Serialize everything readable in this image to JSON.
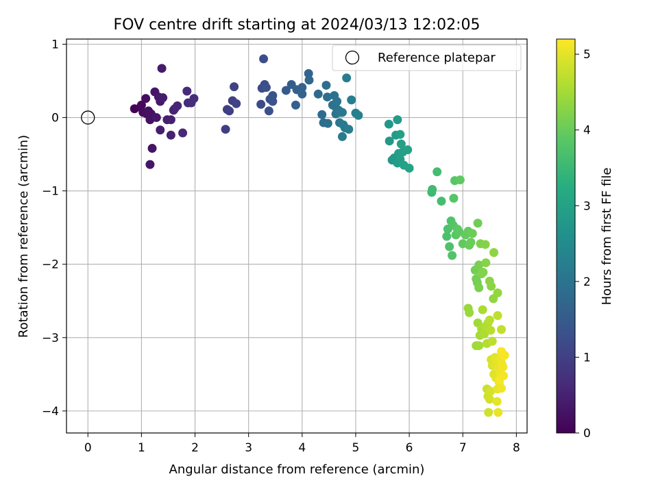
{
  "chart_data": {
    "type": "scatter",
    "title": "FOV centre drift starting at 2024/03/13 12:02:05",
    "xlabel": "Angular distance from reference (arcmin)",
    "ylabel": "Rotation from reference (arcmin)",
    "xlim": [
      -0.4,
      8.2
    ],
    "ylim": [
      -4.3,
      1.07
    ],
    "x_ticks": [
      0,
      1,
      2,
      3,
      4,
      5,
      6,
      7,
      8
    ],
    "x_tick_labels": [
      "0",
      "1",
      "2",
      "3",
      "4",
      "5",
      "6",
      "7",
      "8"
    ],
    "y_ticks": [
      1,
      0,
      -1,
      -2,
      -3,
      -4
    ],
    "y_tick_labels": [
      "1",
      "0",
      "−1",
      "−2",
      "−3",
      "−4"
    ],
    "grid": true,
    "legend": {
      "position": "upper-right",
      "entries": [
        "Reference platepar"
      ]
    },
    "reference_point": {
      "x": 0,
      "y": 0
    },
    "colorbar": {
      "label": "Hours from first FF file",
      "range": [
        0,
        5.2
      ],
      "ticks": [
        0,
        1,
        2,
        3,
        4,
        5
      ],
      "tick_labels": [
        "0",
        "1",
        "2",
        "3",
        "4",
        "5"
      ],
      "colormap": "viridis"
    },
    "points": [
      {
        "x": 0.87,
        "y": 0.12,
        "t": 0.05
      },
      {
        "x": 0.98,
        "y": 0.14,
        "t": 0.1
      },
      {
        "x": 1.0,
        "y": 0.17,
        "t": 0.12
      },
      {
        "x": 1.03,
        "y": 0.07,
        "t": 0.15
      },
      {
        "x": 1.08,
        "y": 0.26,
        "t": 0.18
      },
      {
        "x": 1.1,
        "y": 0.05,
        "t": 0.2
      },
      {
        "x": 1.13,
        "y": 0.09,
        "t": 0.22
      },
      {
        "x": 1.16,
        "y": -0.03,
        "t": 0.24
      },
      {
        "x": 1.18,
        "y": 0.05,
        "t": 0.26
      },
      {
        "x": 1.2,
        "y": -0.42,
        "t": 0.28
      },
      {
        "x": 1.16,
        "y": -0.64,
        "t": 0.3
      },
      {
        "x": 1.25,
        "y": 0.35,
        "t": 0.32
      },
      {
        "x": 1.28,
        "y": 0.0,
        "t": 0.34
      },
      {
        "x": 1.32,
        "y": 0.28,
        "t": 0.36
      },
      {
        "x": 1.35,
        "y": 0.22,
        "t": 0.38
      },
      {
        "x": 1.38,
        "y": 0.67,
        "t": 0.4
      },
      {
        "x": 1.4,
        "y": 0.27,
        "t": 0.42
      },
      {
        "x": 1.35,
        "y": -0.17,
        "t": 0.44
      },
      {
        "x": 1.48,
        "y": -0.03,
        "t": 0.46
      },
      {
        "x": 1.55,
        "y": -0.03,
        "t": 0.48
      },
      {
        "x": 1.55,
        "y": -0.24,
        "t": 0.5
      },
      {
        "x": 1.6,
        "y": 0.1,
        "t": 0.52
      },
      {
        "x": 1.62,
        "y": 0.12,
        "t": 0.54
      },
      {
        "x": 1.67,
        "y": 0.16,
        "t": 0.56
      },
      {
        "x": 1.77,
        "y": -0.21,
        "t": 0.6
      },
      {
        "x": 1.85,
        "y": 0.36,
        "t": 0.62
      },
      {
        "x": 1.87,
        "y": 0.2,
        "t": 0.64
      },
      {
        "x": 1.93,
        "y": 0.2,
        "t": 0.66
      },
      {
        "x": 1.98,
        "y": 0.26,
        "t": 0.68
      },
      {
        "x": 2.57,
        "y": -0.16,
        "t": 0.95
      },
      {
        "x": 2.6,
        "y": 0.11,
        "t": 0.97
      },
      {
        "x": 2.64,
        "y": 0.09,
        "t": 0.99
      },
      {
        "x": 2.7,
        "y": 0.23,
        "t": 1.01
      },
      {
        "x": 2.73,
        "y": 0.42,
        "t": 1.03
      },
      {
        "x": 2.77,
        "y": 0.19,
        "t": 1.05
      },
      {
        "x": 3.23,
        "y": 0.18,
        "t": 1.2
      },
      {
        "x": 3.25,
        "y": 0.4,
        "t": 1.22
      },
      {
        "x": 3.3,
        "y": 0.45,
        "t": 1.24
      },
      {
        "x": 3.33,
        "y": 0.41,
        "t": 1.26
      },
      {
        "x": 3.28,
        "y": 0.8,
        "t": 1.25
      },
      {
        "x": 3.38,
        "y": 0.09,
        "t": 1.3
      },
      {
        "x": 3.4,
        "y": 0.25,
        "t": 1.32
      },
      {
        "x": 3.45,
        "y": 0.3,
        "t": 1.34
      },
      {
        "x": 3.45,
        "y": 0.22,
        "t": 1.36
      },
      {
        "x": 3.7,
        "y": 0.37,
        "t": 1.5
      },
      {
        "x": 3.8,
        "y": 0.45,
        "t": 1.55
      },
      {
        "x": 3.88,
        "y": 0.17,
        "t": 1.58
      },
      {
        "x": 3.9,
        "y": 0.38,
        "t": 1.6
      },
      {
        "x": 3.95,
        "y": 0.38,
        "t": 1.62
      },
      {
        "x": 4.0,
        "y": 0.41,
        "t": 1.64
      },
      {
        "x": 4.0,
        "y": 0.32,
        "t": 1.66
      },
      {
        "x": 4.12,
        "y": 0.6,
        "t": 1.7
      },
      {
        "x": 4.13,
        "y": 0.51,
        "t": 1.72
      },
      {
        "x": 4.3,
        "y": 0.32,
        "t": 1.8
      },
      {
        "x": 4.37,
        "y": 0.04,
        "t": 1.85
      },
      {
        "x": 4.4,
        "y": -0.07,
        "t": 1.87
      },
      {
        "x": 4.45,
        "y": 0.44,
        "t": 1.89
      },
      {
        "x": 4.47,
        "y": 0.28,
        "t": 1.91
      },
      {
        "x": 4.48,
        "y": -0.08,
        "t": 1.93
      },
      {
        "x": 4.57,
        "y": 0.17,
        "t": 1.95
      },
      {
        "x": 4.6,
        "y": 0.3,
        "t": 1.97
      },
      {
        "x": 4.62,
        "y": 0.15,
        "t": 1.99
      },
      {
        "x": 4.63,
        "y": 0.05,
        "t": 2.01
      },
      {
        "x": 4.65,
        "y": 0.22,
        "t": 2.03
      },
      {
        "x": 4.68,
        "y": 0.1,
        "t": 2.05
      },
      {
        "x": 4.7,
        "y": -0.07,
        "t": 2.07
      },
      {
        "x": 4.72,
        "y": 0.07,
        "t": 2.09
      },
      {
        "x": 4.75,
        "y": 0.07,
        "t": 2.11
      },
      {
        "x": 4.77,
        "y": -0.1,
        "t": 2.13
      },
      {
        "x": 4.75,
        "y": -0.26,
        "t": 2.15
      },
      {
        "x": 4.8,
        "y": -0.14,
        "t": 2.17
      },
      {
        "x": 4.83,
        "y": 0.54,
        "t": 2.19
      },
      {
        "x": 4.87,
        "y": -0.16,
        "t": 2.21
      },
      {
        "x": 4.92,
        "y": 0.24,
        "t": 2.23
      },
      {
        "x": 5.0,
        "y": 0.06,
        "t": 2.25
      },
      {
        "x": 5.05,
        "y": 0.03,
        "t": 2.27
      },
      {
        "x": 5.62,
        "y": -0.09,
        "t": 2.75
      },
      {
        "x": 5.63,
        "y": -0.32,
        "t": 2.77
      },
      {
        "x": 5.68,
        "y": -0.58,
        "t": 2.79
      },
      {
        "x": 5.72,
        "y": -0.55,
        "t": 2.81
      },
      {
        "x": 5.75,
        "y": -0.24,
        "t": 2.83
      },
      {
        "x": 5.78,
        "y": -0.03,
        "t": 2.85
      },
      {
        "x": 5.78,
        "y": -0.62,
        "t": 2.87
      },
      {
        "x": 5.8,
        "y": -0.49,
        "t": 2.89
      },
      {
        "x": 5.83,
        "y": -0.57,
        "t": 2.91
      },
      {
        "x": 5.83,
        "y": -0.23,
        "t": 2.93
      },
      {
        "x": 5.85,
        "y": -0.36,
        "t": 2.95
      },
      {
        "x": 5.88,
        "y": -0.47,
        "t": 2.97
      },
      {
        "x": 5.9,
        "y": -0.65,
        "t": 2.99
      },
      {
        "x": 5.97,
        "y": -0.44,
        "t": 3.01
      },
      {
        "x": 6.0,
        "y": -0.69,
        "t": 3.03
      },
      {
        "x": 6.42,
        "y": -1.02,
        "t": 3.55
      },
      {
        "x": 6.43,
        "y": -0.98,
        "t": 3.57
      },
      {
        "x": 6.52,
        "y": -0.74,
        "t": 3.6
      },
      {
        "x": 6.6,
        "y": -1.14,
        "t": 3.62
      },
      {
        "x": 6.7,
        "y": -1.62,
        "t": 3.7
      },
      {
        "x": 6.72,
        "y": -1.52,
        "t": 3.72
      },
      {
        "x": 6.75,
        "y": -1.76,
        "t": 3.74
      },
      {
        "x": 6.78,
        "y": -1.41,
        "t": 3.76
      },
      {
        "x": 6.8,
        "y": -1.88,
        "t": 3.78
      },
      {
        "x": 6.82,
        "y": -1.47,
        "t": 3.8
      },
      {
        "x": 6.83,
        "y": -1.1,
        "t": 3.82
      },
      {
        "x": 6.85,
        "y": -0.86,
        "t": 3.84
      },
      {
        "x": 6.87,
        "y": -1.6,
        "t": 3.86
      },
      {
        "x": 6.9,
        "y": -1.52,
        "t": 3.88
      },
      {
        "x": 6.93,
        "y": -1.56,
        "t": 3.9
      },
      {
        "x": 6.95,
        "y": -0.85,
        "t": 3.92
      },
      {
        "x": 7.0,
        "y": -1.72,
        "t": 3.94
      },
      {
        "x": 7.05,
        "y": -1.6,
        "t": 3.96
      },
      {
        "x": 7.1,
        "y": -1.55,
        "t": 3.98
      },
      {
        "x": 7.12,
        "y": -1.74,
        "t": 4.0
      },
      {
        "x": 7.15,
        "y": -1.7,
        "t": 4.02
      },
      {
        "x": 7.18,
        "y": -1.58,
        "t": 4.04
      },
      {
        "x": 7.23,
        "y": -2.08,
        "t": 4.08
      },
      {
        "x": 7.25,
        "y": -2.2,
        "t": 4.1
      },
      {
        "x": 7.27,
        "y": -2.25,
        "t": 4.12
      },
      {
        "x": 7.28,
        "y": -1.44,
        "t": 4.06
      },
      {
        "x": 7.3,
        "y": -2.01,
        "t": 4.14
      },
      {
        "x": 7.3,
        "y": -2.32,
        "t": 4.16
      },
      {
        "x": 7.33,
        "y": -1.72,
        "t": 4.18
      },
      {
        "x": 7.35,
        "y": -2.13,
        "t": 4.2
      },
      {
        "x": 7.38,
        "y": -2.11,
        "t": 4.22
      },
      {
        "x": 7.42,
        "y": -1.73,
        "t": 4.24
      },
      {
        "x": 7.43,
        "y": -1.98,
        "t": 4.26
      },
      {
        "x": 7.5,
        "y": -2.23,
        "t": 4.28
      },
      {
        "x": 7.53,
        "y": -2.3,
        "t": 4.3
      },
      {
        "x": 7.58,
        "y": -1.84,
        "t": 4.32
      },
      {
        "x": 7.57,
        "y": -2.47,
        "t": 4.34
      },
      {
        "x": 7.65,
        "y": -2.39,
        "t": 4.36
      },
      {
        "x": 7.1,
        "y": -2.6,
        "t": 4.4
      },
      {
        "x": 7.12,
        "y": -2.66,
        "t": 4.42
      },
      {
        "x": 7.25,
        "y": -3.11,
        "t": 4.45
      },
      {
        "x": 7.28,
        "y": -2.8,
        "t": 4.47
      },
      {
        "x": 7.3,
        "y": -3.11,
        "t": 4.49
      },
      {
        "x": 7.32,
        "y": -2.97,
        "t": 4.51
      },
      {
        "x": 7.35,
        "y": -2.88,
        "t": 4.53
      },
      {
        "x": 7.37,
        "y": -2.62,
        "t": 4.55
      },
      {
        "x": 7.4,
        "y": -2.95,
        "t": 4.57
      },
      {
        "x": 7.42,
        "y": -2.85,
        "t": 4.59
      },
      {
        "x": 7.45,
        "y": -3.08,
        "t": 4.61
      },
      {
        "x": 7.47,
        "y": -2.8,
        "t": 4.63
      },
      {
        "x": 7.5,
        "y": -2.76,
        "t": 4.65
      },
      {
        "x": 7.52,
        "y": -2.9,
        "t": 4.67
      },
      {
        "x": 7.55,
        "y": -3.05,
        "t": 4.69
      },
      {
        "x": 7.65,
        "y": -2.7,
        "t": 4.71
      },
      {
        "x": 7.72,
        "y": -2.89,
        "t": 4.73
      },
      {
        "x": 7.45,
        "y": -3.7,
        "t": 4.8
      },
      {
        "x": 7.47,
        "y": -3.8,
        "t": 4.82
      },
      {
        "x": 7.48,
        "y": -4.02,
        "t": 4.85
      },
      {
        "x": 7.5,
        "y": -3.84,
        "t": 4.87
      },
      {
        "x": 7.52,
        "y": -3.73,
        "t": 4.89
      },
      {
        "x": 7.53,
        "y": -3.3,
        "t": 4.9
      },
      {
        "x": 7.55,
        "y": -3.38,
        "t": 4.92
      },
      {
        "x": 7.58,
        "y": -3.5,
        "t": 4.94
      },
      {
        "x": 7.6,
        "y": -3.27,
        "t": 4.96
      },
      {
        "x": 7.6,
        "y": -3.36,
        "t": 4.98
      },
      {
        "x": 7.62,
        "y": -3.55,
        "t": 5.0
      },
      {
        "x": 7.63,
        "y": -3.29,
        "t": 5.01
      },
      {
        "x": 7.64,
        "y": -3.87,
        "t": 5.02
      },
      {
        "x": 7.65,
        "y": -3.7,
        "t": 5.03
      },
      {
        "x": 7.66,
        "y": -4.02,
        "t": 5.04
      },
      {
        "x": 7.67,
        "y": -3.42,
        "t": 5.05
      },
      {
        "x": 7.68,
        "y": -3.61,
        "t": 5.06
      },
      {
        "x": 7.7,
        "y": -3.48,
        "t": 5.07
      },
      {
        "x": 7.71,
        "y": -3.3,
        "t": 5.08
      },
      {
        "x": 7.72,
        "y": -3.69,
        "t": 5.09
      },
      {
        "x": 7.73,
        "y": -3.36,
        "t": 5.1
      },
      {
        "x": 7.75,
        "y": -3.4,
        "t": 5.11
      },
      {
        "x": 7.76,
        "y": -3.52,
        "t": 5.12
      },
      {
        "x": 7.78,
        "y": -3.24,
        "t": 5.13
      },
      {
        "x": 7.68,
        "y": -3.58,
        "t": 5.14
      },
      {
        "x": 7.72,
        "y": -3.19,
        "t": 5.15
      }
    ]
  }
}
